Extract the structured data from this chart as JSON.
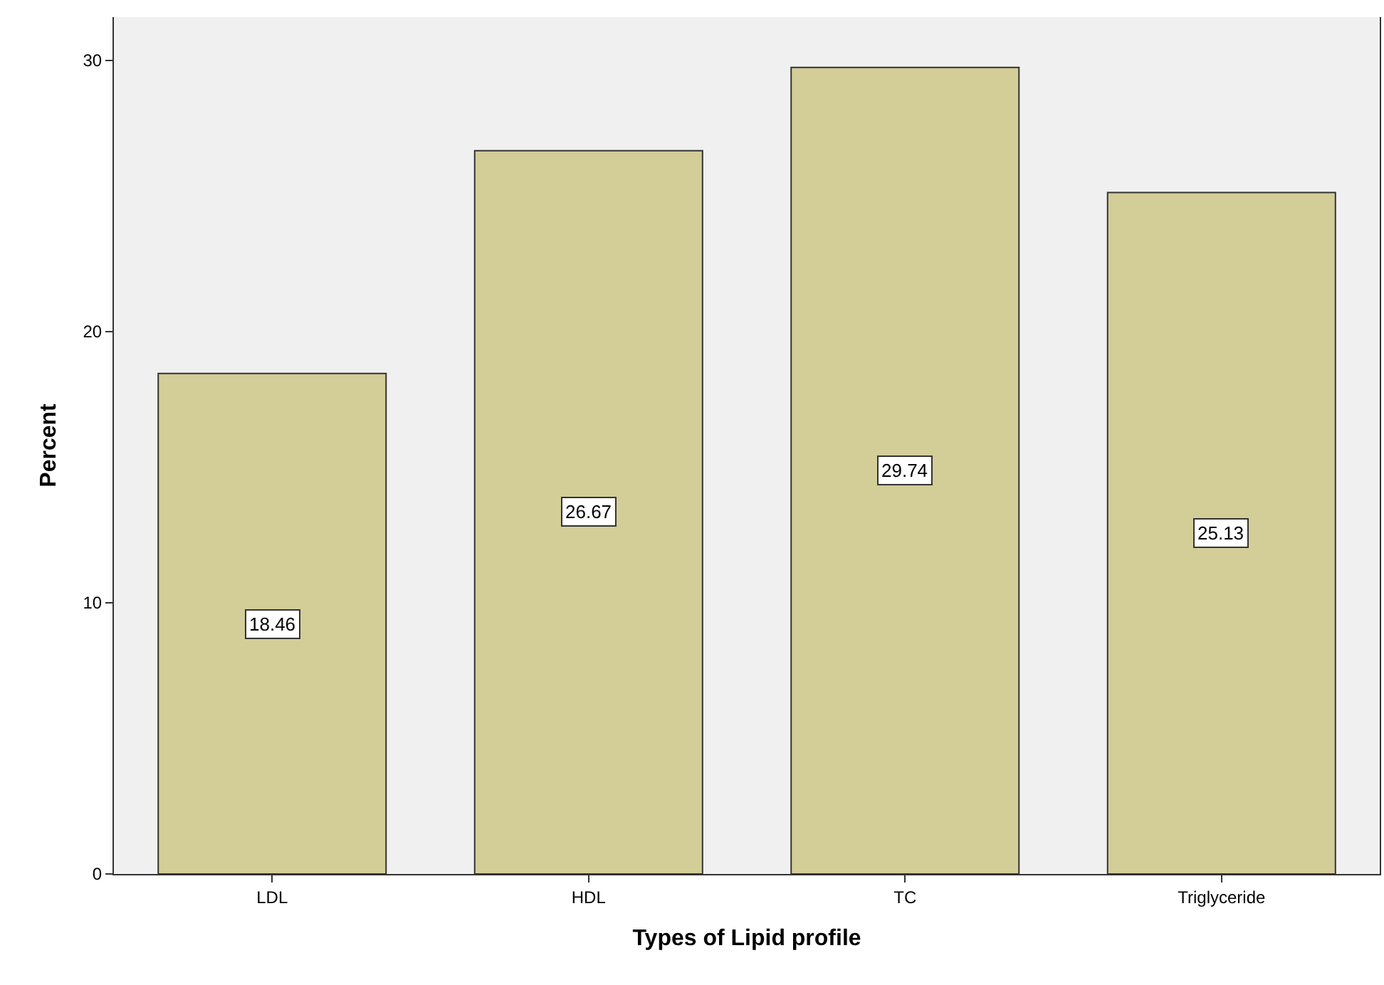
{
  "chart_data": {
    "type": "bar",
    "xlabel": "Types of Lipid profile",
    "ylabel": "Percent",
    "categories": [
      "LDL",
      "HDL",
      "TC",
      "Triglyceride"
    ],
    "values": [
      18.46,
      26.67,
      29.74,
      25.13
    ],
    "color": "#d3cd98",
    "ylim": [
      0,
      31.6
    ],
    "yticks": [
      0,
      10,
      20,
      30
    ],
    "grid": false,
    "data_labels": true
  }
}
